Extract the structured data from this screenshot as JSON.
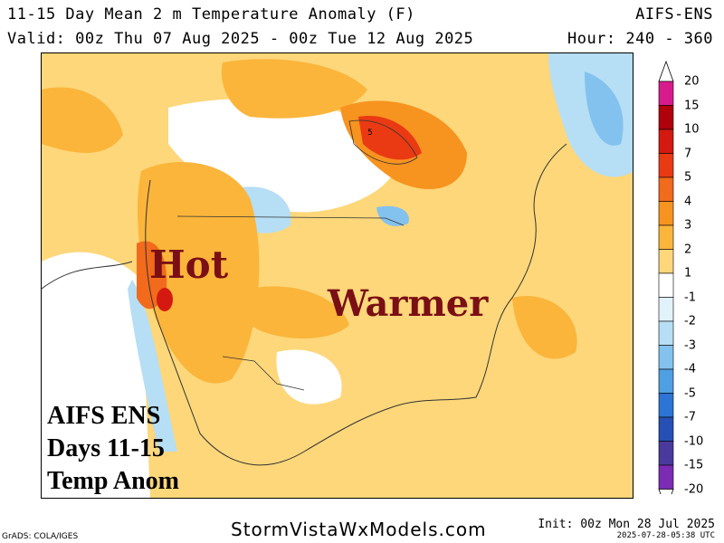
{
  "header": {
    "title": "11-15 Day Mean 2 m Temperature Anomaly (F)",
    "model": "AIFS-ENS",
    "valid": "Valid: 00z Thu 07 Aug 2025 - 00z Tue 12 Aug 2025",
    "hour": "Hour: 240 - 360"
  },
  "annotations": {
    "hot": "Hot",
    "warmer": "Warmer"
  },
  "panel": [
    "AIFS ENS",
    "Days 11-15",
    "Temp Anom"
  ],
  "legend": {
    "labels": [
      "20",
      "15",
      "10",
      "7",
      "5",
      "4",
      "3",
      "2",
      "1",
      "-1",
      "-2",
      "-3",
      "-4",
      "-5",
      "-7",
      "-10",
      "-15",
      "-20"
    ],
    "colors": [
      "#d81b8c",
      "#b0000b",
      "#d41a10",
      "#ea3a13",
      "#f26a1b",
      "#f7931f",
      "#fbb53b",
      "#fdd77a",
      "#ffffff",
      "#e1f2fb",
      "#b6def5",
      "#83c2ee",
      "#4f9fe3",
      "#2c74d6",
      "#2650b5",
      "#4b3a9e",
      "#7c2bb5"
    ]
  },
  "map": {
    "contour_label": "5"
  },
  "footer": {
    "site": "StormVistaWxModels.com",
    "credit": "GrADS: COLA/IGES",
    "init": "Init: 00z Mon 28 Jul 2025",
    "timestamp": "2025-07-28-05:38 UTC"
  }
}
